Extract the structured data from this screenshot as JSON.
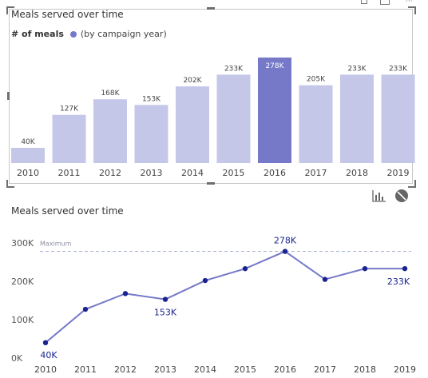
{
  "visual1": {
    "title": "Meals served over time",
    "legend_title": "# of meals",
    "legend_item": "(by campaign year)"
  },
  "visual2": {
    "title": "Meals served over time",
    "reference_label": "Maximum"
  },
  "colors": {
    "bar": "#c5c7e8",
    "bar_highlight": "#7579c8",
    "line": "#7579c8",
    "marker": "#1a2390",
    "reference": "#a9b3d8"
  },
  "icons": [
    "analytics-icon",
    "no-filter-icon"
  ],
  "chart_data": [
    {
      "type": "bar",
      "categories": [
        "2010",
        "2011",
        "2012",
        "2013",
        "2014",
        "2015",
        "2016",
        "2017",
        "2018",
        "2019"
      ],
      "values": [
        40000,
        127000,
        168000,
        153000,
        202000,
        233000,
        278000,
        205000,
        233000,
        233000
      ],
      "labels": [
        "40K",
        "127K",
        "168K",
        "153K",
        "202K",
        "233K",
        "278K",
        "205K",
        "233K",
        "233K"
      ],
      "highlight": "2016",
      "ylim": [
        0,
        278000
      ],
      "grid": false
    },
    {
      "type": "line",
      "x": [
        "2010",
        "2011",
        "2012",
        "2013",
        "2014",
        "2015",
        "2016",
        "2017",
        "2018",
        "2019"
      ],
      "values": [
        40000,
        127000,
        168000,
        153000,
        202000,
        233000,
        278000,
        205000,
        233000,
        233000
      ],
      "yticks": [
        "0K",
        "100K",
        "200K",
        "300K"
      ],
      "ytick_values": [
        0,
        100000,
        200000,
        300000
      ],
      "ylim": [
        0,
        300000
      ],
      "data_labels": [
        {
          "index": 0,
          "text": "40K"
        },
        {
          "index": 3,
          "text": "153K"
        },
        {
          "index": 6,
          "text": "278K"
        },
        {
          "index": 9,
          "text": "233K"
        }
      ],
      "reference_line": 278000,
      "grid": false
    }
  ]
}
